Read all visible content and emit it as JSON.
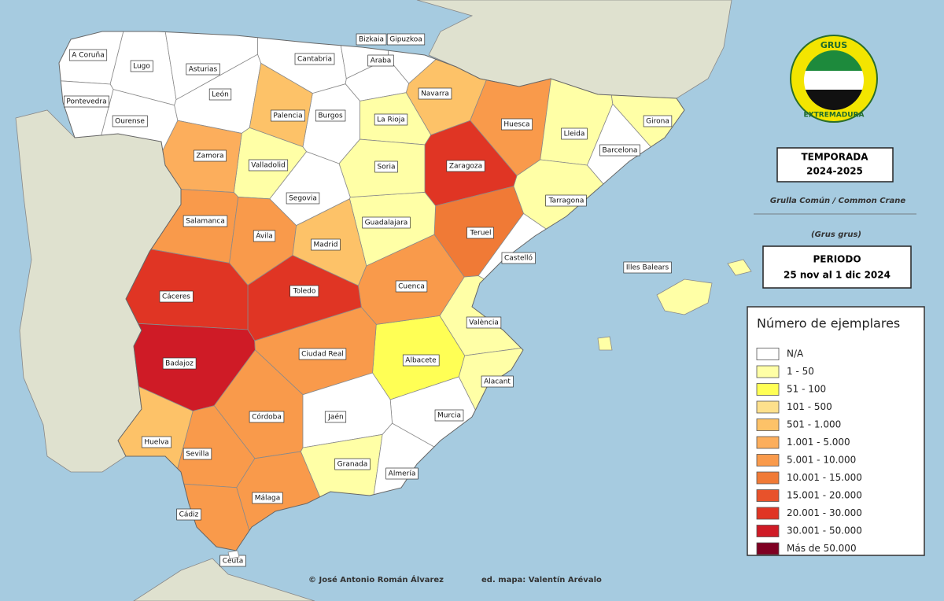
{
  "logo": {
    "top": "GRUS",
    "bottom": "EXTREMADURA"
  },
  "season_box": {
    "lines": [
      "TEMPORADA",
      "2024-2025"
    ]
  },
  "species": "Grulla Común / Common Crane",
  "latin": "(Grus grus)",
  "period_box": {
    "lines": [
      "PERIODO",
      "25 nov al 1 dic 2024"
    ]
  },
  "legend": {
    "title": "Número de ejemplares",
    "items": [
      {
        "label": "N/A",
        "color": "#ffffff"
      },
      {
        "label": "1 - 50",
        "color": "#ffffa6"
      },
      {
        "label": "51 - 100",
        "color": "#ffff55"
      },
      {
        "label": "101 - 500",
        "color": "#fde08c"
      },
      {
        "label": "501 - 1.000",
        "color": "#fdc268"
      },
      {
        "label": "1.001 - 5.000",
        "color": "#fcae5c"
      },
      {
        "label": "5.001 - 10.000",
        "color": "#f99a4b"
      },
      {
        "label": "10.001 - 15.000",
        "color": "#f07a36"
      },
      {
        "label": "15.001 - 20.000",
        "color": "#e8522b"
      },
      {
        "label": "20.001 - 30.000",
        "color": "#e03524"
      },
      {
        "label": "30.001 - 50.000",
        "color": "#cf1b26"
      },
      {
        "label": "Más de 50.000",
        "color": "#7f0022"
      }
    ]
  },
  "provinces": [
    {
      "name": "A Coruña",
      "class": 0
    },
    {
      "name": "Lugo",
      "class": 0
    },
    {
      "name": "Asturias",
      "class": 0
    },
    {
      "name": "Cantabria",
      "class": 0
    },
    {
      "name": "Bizkaia",
      "class": 0
    },
    {
      "name": "Gipuzkoa",
      "class": 0
    },
    {
      "name": "Araba",
      "class": 0
    },
    {
      "name": "Pontevedra",
      "class": 0
    },
    {
      "name": "Ourense",
      "class": 0
    },
    {
      "name": "León",
      "class": 0
    },
    {
      "name": "Burgos",
      "class": 0
    },
    {
      "name": "Palencia",
      "class": 4
    },
    {
      "name": "La Rioja",
      "class": 1
    },
    {
      "name": "Navarra",
      "class": 4
    },
    {
      "name": "Huesca",
      "class": 6
    },
    {
      "name": "Lleida",
      "class": 1
    },
    {
      "name": "Girona",
      "class": 1
    },
    {
      "name": "Barcelona",
      "class": 0
    },
    {
      "name": "Tarragona",
      "class": 1
    },
    {
      "name": "Zaragoza",
      "class": 9
    },
    {
      "name": "Teruel",
      "class": 7
    },
    {
      "name": "Castelló",
      "class": 0
    },
    {
      "name": "València",
      "class": 1
    },
    {
      "name": "Alacant",
      "class": 1
    },
    {
      "name": "Murcia",
      "class": 0
    },
    {
      "name": "Albacete",
      "class": 2
    },
    {
      "name": "Cuenca",
      "class": 6
    },
    {
      "name": "Guadalajara",
      "class": 1
    },
    {
      "name": "Soria",
      "class": 1
    },
    {
      "name": "Segovia",
      "class": 0
    },
    {
      "name": "Valladolid",
      "class": 1
    },
    {
      "name": "Zamora",
      "class": 5
    },
    {
      "name": "Salamanca",
      "class": 6
    },
    {
      "name": "Ávila",
      "class": 6
    },
    {
      "name": "Madrid",
      "class": 4
    },
    {
      "name": "Toledo",
      "class": 9
    },
    {
      "name": "Cáceres",
      "class": 9
    },
    {
      "name": "Badajoz",
      "class": 10
    },
    {
      "name": "Ciudad Real",
      "class": 6
    },
    {
      "name": "Córdoba",
      "class": 6
    },
    {
      "name": "Jaén",
      "class": 0
    },
    {
      "name": "Granada",
      "class": 1
    },
    {
      "name": "Almería",
      "class": 0
    },
    {
      "name": "Sevilla",
      "class": 6
    },
    {
      "name": "Huelva",
      "class": 4
    },
    {
      "name": "Cádiz",
      "class": 6
    },
    {
      "name": "Málaga",
      "class": 6
    },
    {
      "name": "Illes Balears",
      "class": 1
    },
    {
      "name": "Ceuta",
      "class": 0
    }
  ],
  "credits": [
    "© José Antonio Román Álvarez",
    "ed. mapa: Valentín Arévalo"
  ]
}
